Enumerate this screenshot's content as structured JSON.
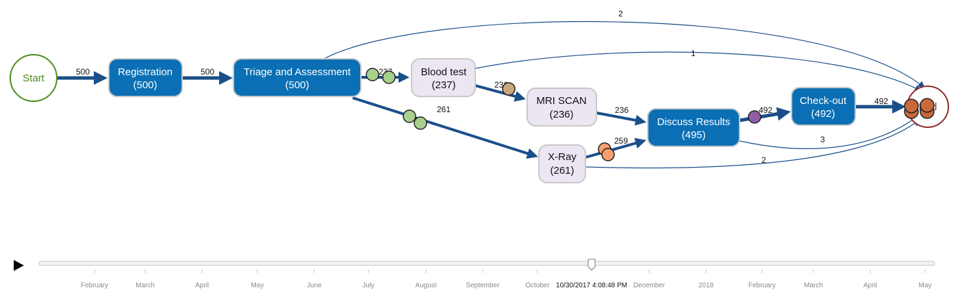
{
  "nodes": [
    {
      "id": "start",
      "label": "Start",
      "count": "",
      "kind": "start"
    },
    {
      "id": "registration",
      "label": "Registration",
      "count": "(500)",
      "kind": "activity"
    },
    {
      "id": "triage",
      "label": "Triage and Assessment",
      "count": "(500)",
      "kind": "activity"
    },
    {
      "id": "blood",
      "label": "Blood test",
      "count": "(237)",
      "kind": "light"
    },
    {
      "id": "mri",
      "label": "MRI SCAN",
      "count": "(236)",
      "kind": "light"
    },
    {
      "id": "xray",
      "label": "X-Ray",
      "count": "(261)",
      "kind": "light"
    },
    {
      "id": "discuss",
      "label": "Discuss Results",
      "count": "(495)",
      "kind": "activity"
    },
    {
      "id": "checkout",
      "label": "Check-out",
      "count": "(492)",
      "kind": "activity"
    },
    {
      "id": "end",
      "label": "End",
      "count": "",
      "kind": "end"
    }
  ],
  "edges": [
    {
      "id": "start-registration",
      "label": "500"
    },
    {
      "id": "registration-triage",
      "label": "500"
    },
    {
      "id": "triage-blood",
      "label": "237"
    },
    {
      "id": "triage-xray",
      "label": "261"
    },
    {
      "id": "triage-end",
      "label": "2"
    },
    {
      "id": "blood-mri",
      "label": "236"
    },
    {
      "id": "blood-end",
      "label": "1"
    },
    {
      "id": "mri-discuss",
      "label": "236"
    },
    {
      "id": "xray-discuss",
      "label": "259"
    },
    {
      "id": "xray-end",
      "label": "2"
    },
    {
      "id": "discuss-checkout",
      "label": "492"
    },
    {
      "id": "discuss-end",
      "label": "3"
    },
    {
      "id": "checkout-end",
      "label": "492"
    }
  ],
  "timeline": {
    "months": [
      "February",
      "March",
      "April",
      "May",
      "June",
      "July",
      "August",
      "September",
      "October",
      "December",
      "2018",
      "February",
      "March",
      "April",
      "May"
    ],
    "current_time": "10/30/2017 4:08:48 PM",
    "progress": 0.617
  },
  "colors": {
    "activity_fill": "#0a6fb4",
    "light_fill": "#ece6f2",
    "edge": "#1b4f8a",
    "start": "#4e8c1e",
    "end": "#8e2a2a"
  },
  "icons": {
    "play": "play-icon"
  }
}
